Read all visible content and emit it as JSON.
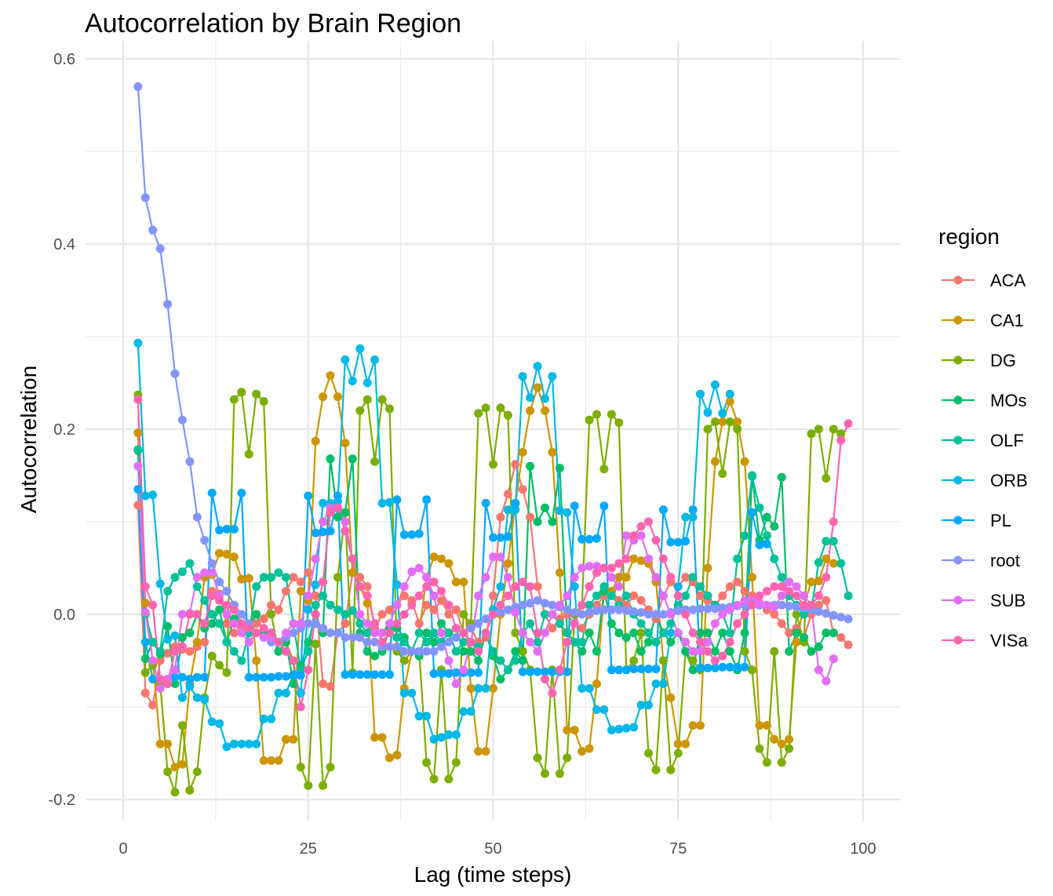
{
  "chart_data": {
    "type": "line",
    "title": "Autocorrelation by Brain Region",
    "xlabel": "Lag (time steps)",
    "ylabel": "Autocorrelation",
    "xlim": [
      0,
      100
    ],
    "ylim": [
      -0.2,
      0.6
    ],
    "x_ticks": [
      0,
      25,
      50,
      75,
      100
    ],
    "y_ticks": [
      -0.2,
      0.0,
      0.2,
      0.4,
      0.6
    ],
    "x_tick_labels": [
      "0",
      "25",
      "50",
      "75",
      "100"
    ],
    "y_tick_labels": [
      "-0.2",
      "0.0",
      "0.2",
      "0.4",
      "0.6"
    ],
    "grid": true,
    "legend_title": "region",
    "legend_position": "right",
    "x_start": 2,
    "series": [
      {
        "name": "ACA",
        "color": "#F8766D",
        "values": [
          0.118,
          -0.085,
          -0.098,
          -0.05,
          -0.042,
          -0.035,
          -0.038,
          -0.04,
          -0.035,
          -0.03,
          0.025,
          0.022,
          -0.01,
          -0.02,
          -0.015,
          -0.02,
          -0.01,
          -0.005,
          0.01,
          0.005,
          0.025,
          0.04,
          0.035,
          0.045,
          0.02,
          -0.075,
          -0.078,
          -0.02,
          -0.01,
          0.045,
          0.04,
          0.03,
          -0.015,
          0.0,
          0.005,
          0.01,
          0.02,
          0.015,
          -0.01,
          0.01,
          0.005,
          0.015,
          0.0,
          0.005,
          -0.02,
          -0.015,
          -0.03,
          -0.025,
          0.02,
          0.105,
          0.13,
          0.162,
          0.135,
          0.105,
          0.03,
          0.0,
          -0.015,
          -0.005,
          0.0,
          -0.01,
          -0.015,
          0.0,
          0.01,
          0.02,
          0.025,
          0.015,
          0.01,
          0.02,
          0.015,
          0.005,
          -0.005,
          0.02,
          0.035,
          0.03,
          0.04,
          0.035,
          0.02,
          0.015,
          0.01,
          0.02,
          0.03,
          0.035,
          0.025,
          0.02,
          0.01,
          0.005,
          0.0,
          -0.01,
          -0.02,
          -0.015,
          -0.025,
          0.0,
          0.01,
          0.015,
          -0.02,
          -0.025,
          -0.033
        ]
      },
      {
        "name": "CA1",
        "color": "#CD9600",
        "values": [
          0.196,
          0.012,
          -0.05,
          -0.14,
          -0.14,
          -0.165,
          -0.162,
          -0.075,
          -0.03,
          0.04,
          0.043,
          0.066,
          0.065,
          0.062,
          0.038,
          0.039,
          -0.05,
          -0.158,
          -0.158,
          -0.158,
          -0.135,
          -0.135,
          0.025,
          0.015,
          0.187,
          0.235,
          0.258,
          0.235,
          0.185,
          0.045,
          0.03,
          0.012,
          -0.133,
          -0.133,
          -0.155,
          -0.152,
          -0.08,
          -0.04,
          -0.02,
          0.04,
          0.062,
          0.06,
          0.055,
          0.035,
          0.035,
          -0.08,
          -0.148,
          -0.148,
          -0.08,
          0.0,
          0.055,
          0.12,
          0.175,
          0.22,
          0.245,
          0.22,
          0.175,
          0.045,
          -0.125,
          -0.125,
          -0.148,
          -0.145,
          -0.075,
          0.025,
          0.025,
          0.04,
          0.04,
          0.06,
          0.058,
          0.055,
          0.035,
          -0.05,
          -0.09,
          -0.14,
          -0.14,
          -0.12,
          -0.12,
          0.05,
          0.165,
          0.208,
          0.23,
          0.208,
          0.165,
          0.04,
          -0.12,
          -0.12,
          -0.135,
          -0.14,
          -0.135,
          -0.03,
          0.01,
          0.035,
          0.036,
          0.06,
          0.055
        ]
      },
      {
        "name": "DG",
        "color": "#7CAE00",
        "values": [
          0.237,
          -0.063,
          -0.055,
          -0.075,
          -0.17,
          -0.192,
          -0.12,
          -0.19,
          -0.17,
          -0.09,
          -0.045,
          -0.055,
          -0.063,
          0.232,
          0.24,
          0.173,
          0.238,
          0.23,
          0.0,
          -0.04,
          -0.03,
          -0.05,
          -0.165,
          -0.185,
          -0.032,
          -0.185,
          -0.165,
          0.04,
          0.11,
          -0.063,
          0.22,
          0.232,
          0.165,
          0.232,
          0.222,
          -0.04,
          -0.05,
          -0.04,
          -0.04,
          -0.16,
          -0.178,
          -0.06,
          -0.178,
          -0.16,
          0.0,
          -0.01,
          0.217,
          0.223,
          0.162,
          0.223,
          0.215,
          -0.02,
          -0.04,
          -0.06,
          -0.155,
          -0.172,
          -0.06,
          -0.172,
          -0.155,
          0.0,
          0.01,
          0.21,
          0.216,
          0.157,
          0.216,
          0.207,
          -0.06,
          -0.05,
          -0.02,
          -0.15,
          -0.168,
          -0.05,
          -0.168,
          -0.15,
          -0.04,
          -0.05,
          -0.06,
          0.2,
          0.208,
          0.152,
          0.208,
          0.2,
          -0.04,
          -0.06,
          -0.145,
          -0.16,
          -0.04,
          -0.16,
          -0.145,
          0.0,
          -0.03,
          0.195,
          0.2,
          0.147,
          0.2,
          0.195
        ]
      },
      {
        "name": "MOs",
        "color": "#00BE67",
        "values": [
          0.177,
          -0.048,
          -0.03,
          -0.043,
          -0.013,
          -0.075,
          -0.025,
          -0.02,
          0.0,
          -0.015,
          -0.01,
          0.005,
          -0.03,
          -0.005,
          -0.01,
          -0.015,
          0.0,
          -0.02,
          -0.02,
          -0.04,
          -0.03,
          -0.075,
          -0.055,
          -0.03,
          0.0,
          -0.02,
          0.168,
          0.105,
          0.11,
          0.168,
          -0.02,
          -0.04,
          -0.045,
          -0.04,
          -0.015,
          -0.015,
          -0.025,
          -0.04,
          -0.045,
          -0.02,
          -0.03,
          -0.01,
          -0.02,
          -0.015,
          -0.04,
          -0.04,
          -0.05,
          -0.02,
          -0.045,
          -0.07,
          -0.06,
          -0.04,
          -0.05,
          0.16,
          0.1,
          0.115,
          0.1,
          0.158,
          -0.02,
          -0.03,
          -0.04,
          -0.02,
          -0.04,
          0.025,
          -0.01,
          -0.02,
          -0.025,
          -0.02,
          -0.04,
          -0.03,
          0.0,
          -0.02,
          -0.03,
          -0.02,
          -0.04,
          -0.06,
          -0.02,
          -0.02,
          -0.04,
          -0.02,
          -0.04,
          -0.06,
          -0.02,
          0.15,
          0.08,
          0.105,
          0.095,
          0.148,
          -0.04,
          -0.02,
          -0.025,
          -0.04,
          -0.035,
          -0.02,
          -0.02
        ]
      },
      {
        "name": "OLF",
        "color": "#00C19A",
        "values": [
          0.178,
          0.0,
          -0.03,
          -0.04,
          0.025,
          0.04,
          0.046,
          0.055,
          0.03,
          0.015,
          0.0,
          -0.01,
          -0.03,
          -0.04,
          -0.05,
          -0.02,
          0.03,
          0.04,
          0.04,
          0.045,
          0.04,
          -0.01,
          -0.06,
          -0.04,
          0.01,
          0.02,
          0.01,
          0.005,
          0.0,
          0.004,
          -0.01,
          -0.02,
          -0.01,
          -0.03,
          -0.02,
          -0.025,
          -0.03,
          -0.04,
          -0.02,
          -0.03,
          -0.02,
          -0.03,
          -0.02,
          -0.04,
          -0.03,
          -0.03,
          -0.035,
          -0.02,
          -0.04,
          -0.05,
          -0.06,
          -0.05,
          -0.02,
          -0.01,
          -0.03,
          0.0,
          0.0,
          -0.01,
          -0.02,
          -0.03,
          -0.03,
          0.01,
          0.02,
          0.03,
          0.02,
          0.01,
          0.02,
          0.0,
          -0.01,
          -0.02,
          -0.03,
          -0.02,
          -0.01,
          0.01,
          0.02,
          0.04,
          0.03,
          0.02,
          0.01,
          0.0,
          -0.02,
          0.06,
          0.085,
          0.149,
          0.115,
          0.085,
          0.06,
          0.04,
          0.02,
          0.01,
          0.0,
          0.005,
          0.056,
          0.079,
          0.079,
          0.055,
          0.02
        ]
      },
      {
        "name": "ORB",
        "color": "#00B8E7",
        "values": [
          0.293,
          0.128,
          0.129,
          0.033,
          -0.027,
          -0.023,
          -0.09,
          -0.078,
          -0.09,
          -0.092,
          -0.116,
          -0.118,
          -0.143,
          -0.14,
          -0.14,
          -0.14,
          -0.14,
          -0.113,
          -0.113,
          -0.085,
          -0.085,
          -0.065,
          -0.085,
          0.005,
          0.032,
          0.12,
          0.12,
          0.122,
          0.275,
          0.252,
          0.287,
          0.25,
          0.275,
          0.12,
          0.121,
          0.032,
          -0.085,
          -0.085,
          -0.11,
          -0.11,
          -0.135,
          -0.133,
          -0.13,
          -0.13,
          -0.105,
          -0.105,
          -0.08,
          -0.08,
          0.005,
          0.03,
          0.113,
          0.113,
          0.257,
          0.234,
          0.268,
          0.233,
          0.257,
          0.112,
          0.11,
          0.03,
          -0.08,
          -0.08,
          -0.103,
          -0.103,
          -0.125,
          -0.124,
          -0.123,
          -0.122,
          -0.098,
          -0.098,
          -0.075,
          -0.075,
          -0.02,
          0.03,
          0.105,
          0.105,
          0.238,
          0.218,
          0.248,
          0.217,
          0.238
        ]
      },
      {
        "name": "PL",
        "color": "#00A9FF",
        "values": [
          0.135,
          -0.03,
          -0.07,
          -0.07,
          -0.07,
          -0.068,
          -0.068,
          -0.07,
          -0.068,
          -0.068,
          0.131,
          0.091,
          0.092,
          0.092,
          0.131,
          -0.068,
          -0.068,
          -0.068,
          -0.068,
          -0.067,
          -0.067,
          -0.066,
          -0.066,
          0.128,
          0.088,
          0.089,
          0.09,
          0.128,
          -0.065,
          -0.065,
          -0.065,
          -0.065,
          -0.065,
          -0.065,
          -0.065,
          0.124,
          0.086,
          0.086,
          0.087,
          0.124,
          -0.064,
          -0.064,
          -0.064,
          -0.063,
          -0.063,
          -0.063,
          -0.063,
          0.12,
          0.083,
          0.083,
          0.084,
          0.12,
          -0.062,
          -0.062,
          -0.062,
          -0.062,
          -0.062,
          -0.062,
          -0.062,
          0.117,
          0.081,
          0.081,
          0.082,
          0.117,
          -0.06,
          -0.06,
          -0.06,
          -0.059,
          -0.059,
          -0.059,
          -0.059,
          0.113,
          0.078,
          0.078,
          0.079,
          0.113,
          -0.058,
          -0.058,
          -0.058,
          -0.057,
          -0.057,
          -0.057,
          -0.057,
          0.11,
          0.075,
          0.076
        ]
      },
      {
        "name": "root",
        "color": "#8494FF",
        "values": [
          0.57,
          0.45,
          0.415,
          0.395,
          0.335,
          0.26,
          0.21,
          0.165,
          0.105,
          0.08,
          0.055,
          0.035,
          0.025,
          0.01,
          0.0,
          -0.01,
          -0.02,
          -0.025,
          -0.03,
          -0.03,
          -0.025,
          -0.02,
          -0.015,
          -0.01,
          -0.01,
          -0.015,
          -0.02,
          -0.02,
          -0.025,
          -0.025,
          -0.025,
          -0.03,
          -0.03,
          -0.035,
          -0.035,
          -0.035,
          -0.04,
          -0.04,
          -0.04,
          -0.04,
          -0.04,
          -0.035,
          -0.03,
          -0.025,
          -0.02,
          -0.015,
          -0.01,
          -0.005,
          0.0,
          0.002,
          0.005,
          0.008,
          0.01,
          0.012,
          0.015,
          0.012,
          0.01,
          0.008,
          0.005,
          0.002,
          0.0,
          0.002,
          0.004,
          0.005,
          0.005,
          0.005,
          0.004,
          0.003,
          0.002,
          0.0,
          0.0,
          0.0,
          0.002,
          0.004,
          0.005,
          0.005,
          0.006,
          0.006,
          0.006,
          0.007,
          0.008,
          0.009,
          0.01,
          0.01,
          0.01,
          0.01,
          0.01,
          0.01,
          0.009,
          0.008,
          0.007,
          0.005,
          0.003,
          0.001,
          -0.001,
          -0.003,
          -0.005
        ]
      },
      {
        "name": "SUB",
        "color": "#E36EF6",
        "values": [
          0.16,
          0.002,
          -0.05,
          -0.08,
          -0.07,
          -0.06,
          0.0,
          0.001,
          0.04,
          0.045,
          0.045,
          0.02,
          0.0,
          -0.01,
          -0.02,
          -0.03,
          -0.02,
          -0.025,
          -0.025,
          -0.03,
          -0.02,
          -0.01,
          -0.01,
          0.02,
          0.06,
          0.1,
          0.115,
          0.115,
          0.1,
          0.06,
          0.0,
          -0.01,
          -0.02,
          -0.02,
          -0.01,
          0.01,
          0.03,
          0.046,
          0.05,
          0.04,
          0.02,
          -0.02,
          -0.05,
          -0.075,
          -0.06,
          -0.03,
          0.02,
          0.04,
          0.062,
          0.062,
          0.04,
          0.002,
          -0.02,
          -0.03,
          -0.04,
          -0.02,
          0.0,
          0.01,
          0.02,
          0.04,
          0.05,
          0.052,
          0.052,
          0.05,
          0.04,
          0.03,
          0.085,
          0.08,
          0.085,
          0.06,
          0.04,
          0.02,
          0.0,
          -0.02,
          -0.03,
          -0.04,
          -0.04,
          -0.03,
          -0.01,
          0.0,
          0.005,
          0.01,
          0.015,
          0.015,
          0.012,
          0.01,
          0.008,
          0.02,
          0.035,
          0.03,
          0.02,
          0.01,
          -0.06,
          -0.072,
          -0.048
        ]
      },
      {
        "name": "VISa",
        "color": "#FF64B0",
        "values": [
          0.232,
          0.03,
          0.01,
          -0.07,
          -0.075,
          -0.04,
          -0.035,
          0.0,
          0.0,
          -0.01,
          0.02,
          0.015,
          0.01,
          0.005,
          -0.01,
          -0.015,
          -0.02,
          -0.015,
          -0.02,
          -0.03,
          -0.04,
          -0.05,
          -0.1,
          -0.06,
          0.0,
          0.035,
          0.11,
          0.115,
          0.09,
          0.06,
          0.03,
          0.02,
          -0.01,
          -0.03,
          -0.02,
          -0.01,
          0.0,
          0.01,
          0.02,
          0.03,
          0.035,
          0.025,
          0.01,
          -0.015,
          -0.02,
          -0.03,
          -0.04,
          -0.02,
          0.0,
          0.01,
          0.02,
          0.03,
          0.035,
          0.03,
          -0.02,
          -0.07,
          -0.085,
          -0.06,
          -0.03,
          -0.01,
          0.01,
          0.03,
          0.045,
          0.05,
          0.05,
          0.055,
          0.06,
          0.085,
          0.095,
          0.1,
          0.08,
          0.06,
          0.04,
          0.02,
          0.0,
          -0.02,
          -0.03,
          -0.04,
          -0.05,
          -0.045,
          -0.03,
          -0.01,
          0.0,
          0.01,
          0.02,
          0.025,
          0.03,
          0.03,
          0.025,
          0.02,
          0.01,
          0.01,
          0.02,
          0.04,
          0.1,
          0.188,
          0.206
        ]
      }
    ]
  }
}
